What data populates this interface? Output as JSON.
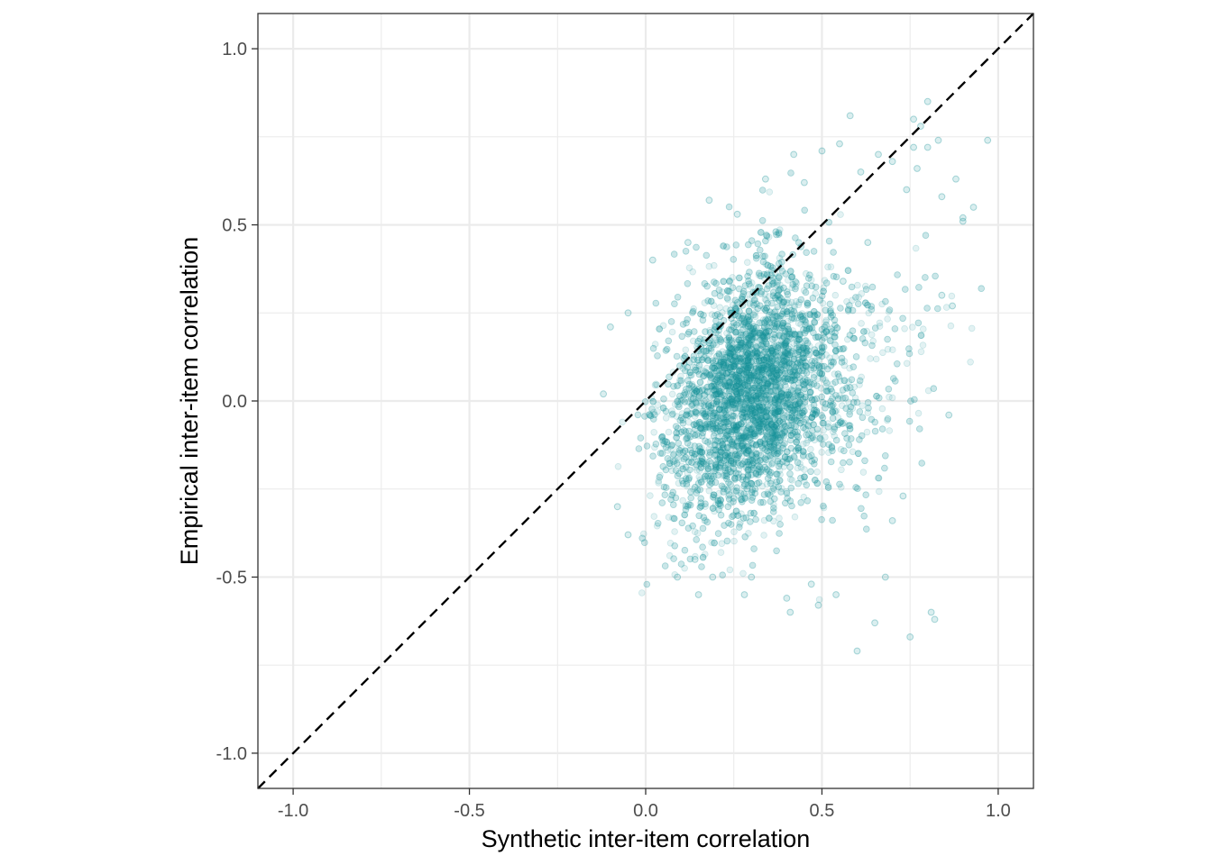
{
  "chart_data": {
    "type": "scatter",
    "title": "",
    "xlabel": "Synthetic inter-item correlation",
    "ylabel": "Empirical inter-item correlation",
    "xlim": [
      -1.1,
      1.1
    ],
    "ylim": [
      -1.1,
      1.1
    ],
    "x_ticks": [
      -1.0,
      -0.5,
      0.0,
      0.5,
      1.0
    ],
    "y_ticks": [
      -1.0,
      -0.5,
      0.0,
      0.5,
      1.0
    ],
    "x_tick_labels": [
      "-1.0",
      "-0.5",
      "0.0",
      "0.5",
      "1.0"
    ],
    "y_tick_labels": [
      "-1.0",
      "-0.5",
      "0.0",
      "0.5",
      "1.0"
    ],
    "grid": true,
    "reference_line": {
      "slope": 1,
      "intercept": 0,
      "style": "dashed",
      "color": "#000000"
    },
    "point_color": "#1a9399",
    "point_alpha": 0.12,
    "cloud": {
      "center": [
        0.29,
        0.02
      ],
      "x_extent": [
        -0.12,
        0.97
      ],
      "y_extent": [
        -0.71,
        0.86
      ],
      "approx_points": 30000
    },
    "series": [
      {
        "x": [
          0.97,
          0.93,
          0.9,
          0.87,
          0.86,
          0.84,
          0.83,
          0.82,
          0.81,
          0.8,
          0.78,
          0.76,
          0.75,
          0.73,
          0.7,
          0.68,
          0.65,
          0.6,
          0.54,
          0.47,
          0.41,
          0.28,
          0.19,
          0.15,
          0.09,
          -0.05,
          -0.08,
          -0.1,
          -0.12,
          -0.05,
          0.02,
          0.12,
          0.18,
          0.26,
          0.34,
          0.42,
          0.45,
          0.5,
          0.55,
          0.58,
          0.61,
          0.66,
          0.7,
          0.74,
          0.76,
          0.77,
          0.8,
          0.84,
          0.88,
          0.9,
          0.63,
          0.56,
          0.49,
          0.4,
          0.3,
          0.14
        ],
        "y": [
          0.74,
          0.55,
          0.52,
          0.27,
          -0.04,
          0.3,
          0.74,
          -0.62,
          -0.6,
          0.72,
          0.78,
          0.8,
          -0.67,
          -0.27,
          -0.34,
          -0.5,
          -0.63,
          -0.71,
          -0.55,
          -0.52,
          -0.6,
          -0.55,
          -0.5,
          -0.55,
          -0.5,
          -0.38,
          -0.3,
          0.21,
          0.02,
          0.25,
          0.4,
          0.45,
          0.57,
          0.53,
          0.63,
          0.7,
          0.62,
          0.71,
          0.73,
          0.81,
          0.65,
          0.7,
          0.68,
          0.6,
          0.72,
          0.66,
          0.85,
          0.58,
          0.63,
          0.51,
          0.45,
          0.34,
          -0.58,
          -0.56,
          -0.5,
          -0.45
        ]
      }
    ]
  }
}
